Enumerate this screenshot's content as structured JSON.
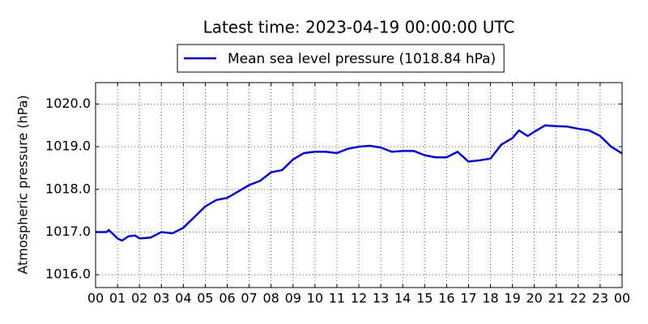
{
  "chart_data": {
    "type": "line",
    "title": "Latest time: 2023-04-19 00:00:00 UTC",
    "ylabel": "Atmospheric pressure (hPa)",
    "x": [
      0,
      0.5,
      0.6,
      1.0,
      1.2,
      1.5,
      1.8,
      2.0,
      2.5,
      3.0,
      3.5,
      4.0,
      4.5,
      5.0,
      5.5,
      6.0,
      6.5,
      7.0,
      7.5,
      8.0,
      8.5,
      9.0,
      9.5,
      10,
      10.5,
      11,
      11.5,
      12,
      12.5,
      13,
      13.5,
      14,
      14.5,
      15,
      15.5,
      16,
      16.5,
      17,
      17.5,
      18,
      18.5,
      19,
      19.3,
      19.7,
      20,
      20.5,
      21,
      21.5,
      22,
      22.5,
      23,
      23.5,
      24
    ],
    "series": [
      {
        "name": "Mean sea level pressure (1018.84 hPa)",
        "color": "#0000ff",
        "values": [
          1017.0,
          1017.0,
          1017.05,
          1016.85,
          1016.8,
          1016.9,
          1016.92,
          1016.85,
          1016.87,
          1017.0,
          1016.97,
          1017.1,
          1017.35,
          1017.6,
          1017.75,
          1017.8,
          1017.95,
          1018.1,
          1018.2,
          1018.4,
          1018.45,
          1018.7,
          1018.85,
          1018.88,
          1018.88,
          1018.85,
          1018.95,
          1019.0,
          1019.02,
          1018.98,
          1018.88,
          1018.9,
          1018.9,
          1018.8,
          1018.75,
          1018.75,
          1018.88,
          1018.65,
          1018.68,
          1018.72,
          1019.05,
          1019.2,
          1019.38,
          1019.25,
          1019.35,
          1019.5,
          1019.48,
          1019.47,
          1019.42,
          1019.38,
          1019.25,
          1019.0,
          1018.84
        ]
      }
    ],
    "xlim": [
      0,
      24
    ],
    "xticks": [
      {
        "value": 0,
        "label": "00"
      },
      {
        "value": 1,
        "label": "01"
      },
      {
        "value": 2,
        "label": "02"
      },
      {
        "value": 3,
        "label": "03"
      },
      {
        "value": 4,
        "label": "04"
      },
      {
        "value": 5,
        "label": "05"
      },
      {
        "value": 6,
        "label": "06"
      },
      {
        "value": 7,
        "label": "07"
      },
      {
        "value": 8,
        "label": "08"
      },
      {
        "value": 9,
        "label": "09"
      },
      {
        "value": 10,
        "label": "10"
      },
      {
        "value": 11,
        "label": "11"
      },
      {
        "value": 12,
        "label": "12"
      },
      {
        "value": 13,
        "label": "13"
      },
      {
        "value": 14,
        "label": "14"
      },
      {
        "value": 15,
        "label": "15"
      },
      {
        "value": 16,
        "label": "16"
      },
      {
        "value": 17,
        "label": "17"
      },
      {
        "value": 18,
        "label": "18"
      },
      {
        "value": 19,
        "label": "19"
      },
      {
        "value": 20,
        "label": "20"
      },
      {
        "value": 21,
        "label": "21"
      },
      {
        "value": 22,
        "label": "22"
      },
      {
        "value": 23,
        "label": "23"
      },
      {
        "value": 24,
        "label": "00"
      }
    ],
    "ylim": [
      1015.7,
      1020.5
    ],
    "yticks": [
      {
        "value": 1016,
        "label": "1016.0"
      },
      {
        "value": 1017,
        "label": "1017.0"
      },
      {
        "value": 1018,
        "label": "1018.0"
      },
      {
        "value": 1019,
        "label": "1019.0"
      },
      {
        "value": 1020,
        "label": "1020.0"
      }
    ],
    "grid": true,
    "legend": "top"
  }
}
